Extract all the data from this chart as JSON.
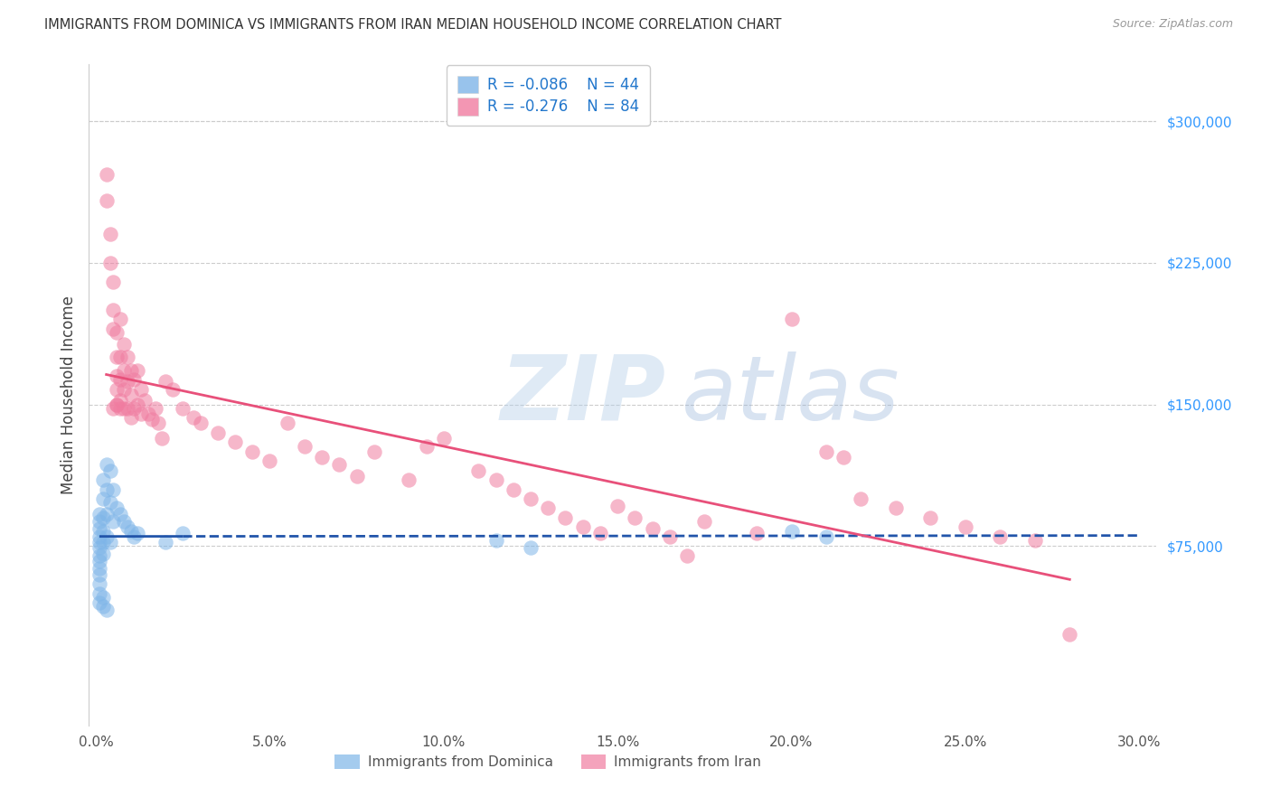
{
  "title": "IMMIGRANTS FROM DOMINICA VS IMMIGRANTS FROM IRAN MEDIAN HOUSEHOLD INCOME CORRELATION CHART",
  "source": "Source: ZipAtlas.com",
  "xlabel_ticks": [
    "0.0%",
    "5.0%",
    "10.0%",
    "15.0%",
    "20.0%",
    "25.0%",
    "30.0%"
  ],
  "xlabel_vals": [
    0.0,
    0.05,
    0.1,
    0.15,
    0.2,
    0.25,
    0.3
  ],
  "ylabel_ticks": [
    "$75,000",
    "$150,000",
    "$225,000",
    "$300,000"
  ],
  "ylabel_vals": [
    75000,
    150000,
    225000,
    300000
  ],
  "xlim": [
    -0.002,
    0.305
  ],
  "ylim": [
    -20000,
    330000
  ],
  "ylabel": "Median Household Income",
  "legend_blue_r": "R = -0.086",
  "legend_blue_n": "N = 44",
  "legend_pink_r": "R = -0.276",
  "legend_pink_n": "N = 84",
  "blue_color": "#7eb5e8",
  "pink_color": "#f07ca0",
  "blue_line_color": "#2255aa",
  "pink_line_color": "#e8507a",
  "watermark": "ZIPAtlas",
  "blue_scatter_x": [
    0.001,
    0.001,
    0.001,
    0.001,
    0.001,
    0.001,
    0.001,
    0.001,
    0.001,
    0.001,
    0.002,
    0.002,
    0.002,
    0.002,
    0.002,
    0.002,
    0.003,
    0.003,
    0.003,
    0.003,
    0.004,
    0.004,
    0.004,
    0.005,
    0.005,
    0.006,
    0.007,
    0.008,
    0.009,
    0.01,
    0.011,
    0.012,
    0.02,
    0.025,
    0.115,
    0.125,
    0.2,
    0.21,
    0.001,
    0.001,
    0.001,
    0.002,
    0.002,
    0.003
  ],
  "blue_scatter_y": [
    92000,
    88000,
    84000,
    80000,
    77000,
    74000,
    70000,
    67000,
    63000,
    60000,
    110000,
    100000,
    90000,
    83000,
    77000,
    71000,
    118000,
    105000,
    92000,
    80000,
    115000,
    98000,
    77000,
    105000,
    88000,
    95000,
    92000,
    88000,
    85000,
    83000,
    80000,
    82000,
    77000,
    82000,
    78000,
    74000,
    83000,
    80000,
    55000,
    50000,
    45000,
    48000,
    43000,
    41000
  ],
  "pink_scatter_x": [
    0.003,
    0.003,
    0.004,
    0.004,
    0.005,
    0.005,
    0.005,
    0.006,
    0.006,
    0.006,
    0.006,
    0.006,
    0.007,
    0.007,
    0.007,
    0.007,
    0.008,
    0.008,
    0.008,
    0.009,
    0.009,
    0.009,
    0.01,
    0.01,
    0.01,
    0.011,
    0.011,
    0.012,
    0.012,
    0.013,
    0.013,
    0.014,
    0.015,
    0.016,
    0.017,
    0.018,
    0.019,
    0.02,
    0.022,
    0.025,
    0.028,
    0.03,
    0.035,
    0.04,
    0.045,
    0.05,
    0.055,
    0.06,
    0.065,
    0.07,
    0.075,
    0.08,
    0.09,
    0.095,
    0.1,
    0.11,
    0.115,
    0.12,
    0.125,
    0.13,
    0.135,
    0.14,
    0.145,
    0.15,
    0.155,
    0.16,
    0.165,
    0.175,
    0.19,
    0.2,
    0.21,
    0.215,
    0.22,
    0.23,
    0.24,
    0.25,
    0.26,
    0.27,
    0.005,
    0.006,
    0.007,
    0.008,
    0.17,
    0.28
  ],
  "pink_scatter_y": [
    272000,
    258000,
    240000,
    225000,
    215000,
    200000,
    190000,
    188000,
    175000,
    165000,
    158000,
    150000,
    195000,
    175000,
    163000,
    152000,
    182000,
    168000,
    158000,
    175000,
    162000,
    148000,
    168000,
    155000,
    143000,
    163000,
    148000,
    168000,
    150000,
    158000,
    145000,
    152000,
    145000,
    142000,
    148000,
    140000,
    132000,
    162000,
    158000,
    148000,
    143000,
    140000,
    135000,
    130000,
    125000,
    120000,
    140000,
    128000,
    122000,
    118000,
    112000,
    125000,
    110000,
    128000,
    132000,
    115000,
    110000,
    105000,
    100000,
    95000,
    90000,
    85000,
    82000,
    96000,
    90000,
    84000,
    80000,
    88000,
    82000,
    195000,
    125000,
    122000,
    100000,
    95000,
    90000,
    85000,
    80000,
    78000,
    148000,
    150000,
    148000,
    148000,
    70000,
    28000
  ]
}
